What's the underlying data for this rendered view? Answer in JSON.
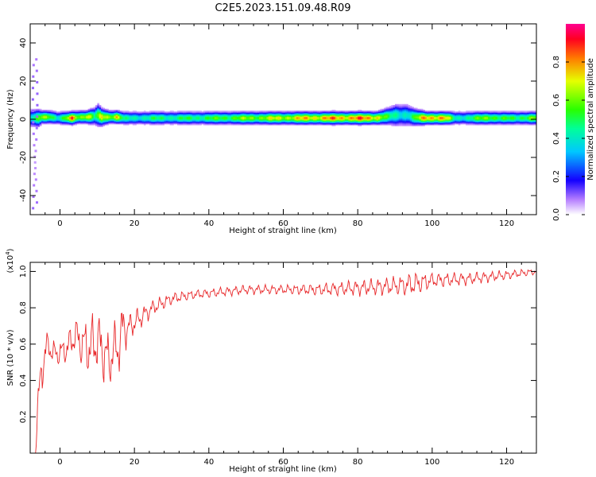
{
  "title": "C2E5.2023.151.09.48.R09",
  "chart_data": [
    {
      "type": "heatmap",
      "xlabel": "Height of straight line (km)",
      "ylabel": "Frequency (Hz)",
      "xlim": [
        -8,
        128
      ],
      "ylim": [
        -50,
        50
      ],
      "x_ticks": [
        0,
        20,
        40,
        60,
        80,
        100,
        120
      ],
      "y_ticks": [
        -40,
        -20,
        0,
        20,
        40
      ],
      "colorbar": {
        "label": "Normalized spectral amplitude",
        "range": [
          0,
          1
        ],
        "ticks": [
          "0.0",
          "0.2",
          "0.4",
          "0.6",
          "0.8"
        ]
      },
      "ridge": {
        "x": [
          -7,
          -6,
          -5,
          -3,
          -1,
          1,
          3,
          5,
          7,
          9,
          10,
          11,
          13,
          15,
          17,
          20,
          25,
          30,
          40,
          50,
          60,
          70,
          80,
          85,
          88,
          90,
          93,
          95,
          98,
          100,
          103,
          106,
          110,
          115,
          118,
          122,
          125,
          128
        ],
        "amp": [
          0.5,
          0.65,
          0.7,
          0.75,
          0.5,
          0.6,
          0.95,
          0.7,
          0.9,
          0.55,
          0.6,
          0.85,
          0.75,
          0.9,
          0.5,
          0.5,
          0.55,
          0.55,
          0.6,
          0.7,
          0.8,
          0.9,
          0.95,
          0.9,
          0.55,
          0.5,
          0.5,
          0.6,
          0.95,
          0.95,
          0.9,
          0.5,
          0.55,
          0.75,
          0.6,
          0.6,
          0.65,
          0.7
        ],
        "width_hz": [
          4,
          4,
          3,
          3,
          3,
          3,
          3,
          3,
          3,
          4,
          5,
          4,
          3,
          3,
          3,
          3,
          3,
          3,
          3,
          3,
          3,
          3,
          3,
          3,
          4,
          5,
          5,
          4,
          3,
          3,
          3,
          3,
          3,
          3,
          3,
          3,
          3,
          3
        ],
        "freq_center_hz": [
          0.5,
          0.5,
          1,
          1,
          0.5,
          0.5,
          0.5,
          1,
          1,
          1.5,
          2,
          1,
          1,
          1,
          0.5,
          0.5,
          0.5,
          0.5,
          0.5,
          0.5,
          0.5,
          0.5,
          0.5,
          0.5,
          1.5,
          2,
          2,
          1,
          0.5,
          0.5,
          0.5,
          0.5,
          0.5,
          0.5,
          0.5,
          0.5,
          0.5,
          0.5
        ]
      }
    },
    {
      "type": "line",
      "xlabel": "Height of straight line (km)",
      "ylabel": "SNR (10 * v/v)",
      "y_multiplier": "(x10^4)",
      "xlim": [
        -8,
        128
      ],
      "ylim": [
        0,
        1.05
      ],
      "x_ticks": [
        0,
        20,
        40,
        60,
        80,
        100,
        120
      ],
      "y_ticks": [
        0.2,
        0.4,
        0.6,
        0.8,
        1.0
      ],
      "color": "#e8282a",
      "envelope": {
        "x": [
          -8,
          -6.5,
          -6,
          -5,
          -4,
          -3,
          -2,
          0,
          2,
          4,
          6,
          8,
          10,
          12,
          13,
          14,
          16,
          17,
          18,
          20,
          25,
          30,
          35,
          40,
          50,
          60,
          70,
          80,
          90,
          95,
          100,
          110,
          120,
          128
        ],
        "y": [
          0.0,
          0.0,
          0.25,
          0.45,
          0.55,
          0.6,
          0.55,
          0.55,
          0.58,
          0.65,
          0.6,
          0.58,
          0.62,
          0.55,
          0.5,
          0.55,
          0.6,
          0.7,
          0.68,
          0.72,
          0.8,
          0.85,
          0.87,
          0.88,
          0.9,
          0.9,
          0.9,
          0.91,
          0.92,
          0.93,
          0.95,
          0.96,
          0.98,
          1.0
        ],
        "noise": [
          0.0,
          0.0,
          0.1,
          0.15,
          0.12,
          0.1,
          0.08,
          0.08,
          0.1,
          0.12,
          0.15,
          0.2,
          0.2,
          0.2,
          0.2,
          0.18,
          0.18,
          0.18,
          0.1,
          0.08,
          0.05,
          0.04,
          0.03,
          0.03,
          0.03,
          0.03,
          0.04,
          0.05,
          0.06,
          0.08,
          0.05,
          0.04,
          0.03,
          0.02
        ]
      }
    }
  ]
}
